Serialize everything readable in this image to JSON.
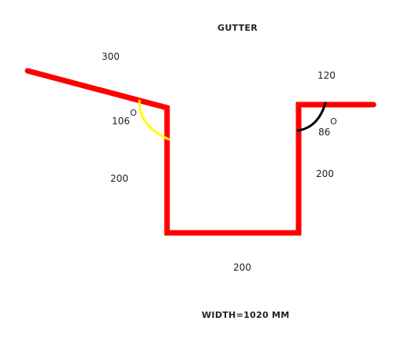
{
  "title": "GUTTER",
  "dimensions": {
    "slope_length": "300",
    "top_right_length": "120",
    "left_side": "200",
    "right_side": "200",
    "bottom": "200"
  },
  "angles": {
    "left_value": "106",
    "left_degree": "O",
    "right_value": "86",
    "right_degree": "O"
  },
  "width_label": "WIDTH=1020 MM",
  "colors": {
    "profile": "#ff0000",
    "left_angle_arc": "#ffff00",
    "right_angle_arc": "#000000",
    "background": "#ffffff"
  }
}
